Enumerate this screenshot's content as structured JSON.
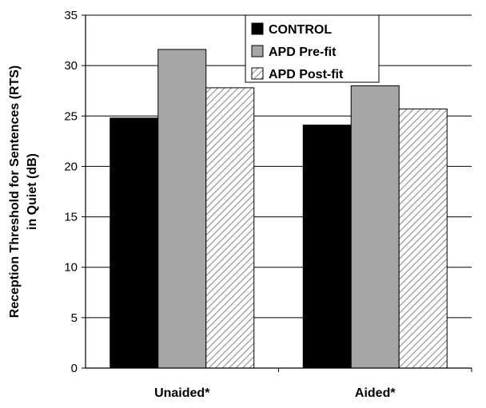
{
  "chart_data": {
    "type": "bar",
    "title": "",
    "ylabel_line1": "Reception Threshold for Sentences (RTS)",
    "ylabel_line2": "in Quiet (dB)",
    "xlabel": "",
    "ylim": [
      0,
      35
    ],
    "yticks": [
      0,
      5,
      10,
      15,
      20,
      25,
      30,
      35
    ],
    "grid": true,
    "legend_position": "top-right",
    "categories": [
      "Unaided*",
      "Aided*"
    ],
    "series": [
      {
        "name": "CONTROL",
        "values": [
          24.8,
          24.1
        ],
        "color": "#000000",
        "pattern": "solid"
      },
      {
        "name": "APD Pre-fit",
        "values": [
          31.6,
          28.0
        ],
        "color": "#a6a6a6",
        "pattern": "solid"
      },
      {
        "name": "APD Post-fit",
        "values": [
          27.8,
          25.7
        ],
        "color": "#ffffff",
        "pattern": "diagonal-hatch"
      }
    ]
  }
}
